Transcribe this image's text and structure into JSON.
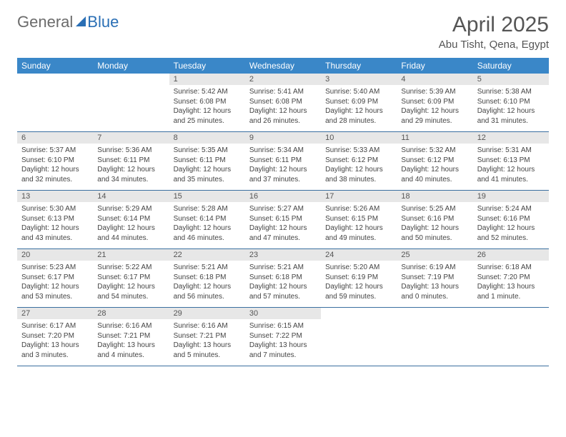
{
  "brand": {
    "part1": "General",
    "part2": "Blue"
  },
  "title": {
    "month": "April 2025",
    "location": "Abu Tisht, Qena, Egypt"
  },
  "colors": {
    "header_bg": "#3a87c8",
    "header_text": "#ffffff",
    "daynum_bg": "#e7e7e7",
    "row_border": "#3a6fa0",
    "brand_gray": "#6b6b6b",
    "brand_blue": "#2a6fb5",
    "title_color": "#555555",
    "body_text": "#444444",
    "background": "#ffffff"
  },
  "font": {
    "family": "Arial",
    "day_header_pt": 12,
    "daynum_pt": 11,
    "cell_pt": 10,
    "month_pt": 30,
    "location_pt": 15
  },
  "day_headers": [
    "Sunday",
    "Monday",
    "Tuesday",
    "Wednesday",
    "Thursday",
    "Friday",
    "Saturday"
  ],
  "weeks": [
    [
      {
        "num": "",
        "sunrise": "",
        "sunset": "",
        "daylight1": "",
        "daylight2": ""
      },
      {
        "num": "",
        "sunrise": "",
        "sunset": "",
        "daylight1": "",
        "daylight2": ""
      },
      {
        "num": "1",
        "sunrise": "Sunrise: 5:42 AM",
        "sunset": "Sunset: 6:08 PM",
        "daylight1": "Daylight: 12 hours",
        "daylight2": "and 25 minutes."
      },
      {
        "num": "2",
        "sunrise": "Sunrise: 5:41 AM",
        "sunset": "Sunset: 6:08 PM",
        "daylight1": "Daylight: 12 hours",
        "daylight2": "and 26 minutes."
      },
      {
        "num": "3",
        "sunrise": "Sunrise: 5:40 AM",
        "sunset": "Sunset: 6:09 PM",
        "daylight1": "Daylight: 12 hours",
        "daylight2": "and 28 minutes."
      },
      {
        "num": "4",
        "sunrise": "Sunrise: 5:39 AM",
        "sunset": "Sunset: 6:09 PM",
        "daylight1": "Daylight: 12 hours",
        "daylight2": "and 29 minutes."
      },
      {
        "num": "5",
        "sunrise": "Sunrise: 5:38 AM",
        "sunset": "Sunset: 6:10 PM",
        "daylight1": "Daylight: 12 hours",
        "daylight2": "and 31 minutes."
      }
    ],
    [
      {
        "num": "6",
        "sunrise": "Sunrise: 5:37 AM",
        "sunset": "Sunset: 6:10 PM",
        "daylight1": "Daylight: 12 hours",
        "daylight2": "and 32 minutes."
      },
      {
        "num": "7",
        "sunrise": "Sunrise: 5:36 AM",
        "sunset": "Sunset: 6:11 PM",
        "daylight1": "Daylight: 12 hours",
        "daylight2": "and 34 minutes."
      },
      {
        "num": "8",
        "sunrise": "Sunrise: 5:35 AM",
        "sunset": "Sunset: 6:11 PM",
        "daylight1": "Daylight: 12 hours",
        "daylight2": "and 35 minutes."
      },
      {
        "num": "9",
        "sunrise": "Sunrise: 5:34 AM",
        "sunset": "Sunset: 6:11 PM",
        "daylight1": "Daylight: 12 hours",
        "daylight2": "and 37 minutes."
      },
      {
        "num": "10",
        "sunrise": "Sunrise: 5:33 AM",
        "sunset": "Sunset: 6:12 PM",
        "daylight1": "Daylight: 12 hours",
        "daylight2": "and 38 minutes."
      },
      {
        "num": "11",
        "sunrise": "Sunrise: 5:32 AM",
        "sunset": "Sunset: 6:12 PM",
        "daylight1": "Daylight: 12 hours",
        "daylight2": "and 40 minutes."
      },
      {
        "num": "12",
        "sunrise": "Sunrise: 5:31 AM",
        "sunset": "Sunset: 6:13 PM",
        "daylight1": "Daylight: 12 hours",
        "daylight2": "and 41 minutes."
      }
    ],
    [
      {
        "num": "13",
        "sunrise": "Sunrise: 5:30 AM",
        "sunset": "Sunset: 6:13 PM",
        "daylight1": "Daylight: 12 hours",
        "daylight2": "and 43 minutes."
      },
      {
        "num": "14",
        "sunrise": "Sunrise: 5:29 AM",
        "sunset": "Sunset: 6:14 PM",
        "daylight1": "Daylight: 12 hours",
        "daylight2": "and 44 minutes."
      },
      {
        "num": "15",
        "sunrise": "Sunrise: 5:28 AM",
        "sunset": "Sunset: 6:14 PM",
        "daylight1": "Daylight: 12 hours",
        "daylight2": "and 46 minutes."
      },
      {
        "num": "16",
        "sunrise": "Sunrise: 5:27 AM",
        "sunset": "Sunset: 6:15 PM",
        "daylight1": "Daylight: 12 hours",
        "daylight2": "and 47 minutes."
      },
      {
        "num": "17",
        "sunrise": "Sunrise: 5:26 AM",
        "sunset": "Sunset: 6:15 PM",
        "daylight1": "Daylight: 12 hours",
        "daylight2": "and 49 minutes."
      },
      {
        "num": "18",
        "sunrise": "Sunrise: 5:25 AM",
        "sunset": "Sunset: 6:16 PM",
        "daylight1": "Daylight: 12 hours",
        "daylight2": "and 50 minutes."
      },
      {
        "num": "19",
        "sunrise": "Sunrise: 5:24 AM",
        "sunset": "Sunset: 6:16 PM",
        "daylight1": "Daylight: 12 hours",
        "daylight2": "and 52 minutes."
      }
    ],
    [
      {
        "num": "20",
        "sunrise": "Sunrise: 5:23 AM",
        "sunset": "Sunset: 6:17 PM",
        "daylight1": "Daylight: 12 hours",
        "daylight2": "and 53 minutes."
      },
      {
        "num": "21",
        "sunrise": "Sunrise: 5:22 AM",
        "sunset": "Sunset: 6:17 PM",
        "daylight1": "Daylight: 12 hours",
        "daylight2": "and 54 minutes."
      },
      {
        "num": "22",
        "sunrise": "Sunrise: 5:21 AM",
        "sunset": "Sunset: 6:18 PM",
        "daylight1": "Daylight: 12 hours",
        "daylight2": "and 56 minutes."
      },
      {
        "num": "23",
        "sunrise": "Sunrise: 5:21 AM",
        "sunset": "Sunset: 6:18 PM",
        "daylight1": "Daylight: 12 hours",
        "daylight2": "and 57 minutes."
      },
      {
        "num": "24",
        "sunrise": "Sunrise: 5:20 AM",
        "sunset": "Sunset: 6:19 PM",
        "daylight1": "Daylight: 12 hours",
        "daylight2": "and 59 minutes."
      },
      {
        "num": "25",
        "sunrise": "Sunrise: 6:19 AM",
        "sunset": "Sunset: 7:19 PM",
        "daylight1": "Daylight: 13 hours",
        "daylight2": "and 0 minutes."
      },
      {
        "num": "26",
        "sunrise": "Sunrise: 6:18 AM",
        "sunset": "Sunset: 7:20 PM",
        "daylight1": "Daylight: 13 hours",
        "daylight2": "and 1 minute."
      }
    ],
    [
      {
        "num": "27",
        "sunrise": "Sunrise: 6:17 AM",
        "sunset": "Sunset: 7:20 PM",
        "daylight1": "Daylight: 13 hours",
        "daylight2": "and 3 minutes."
      },
      {
        "num": "28",
        "sunrise": "Sunrise: 6:16 AM",
        "sunset": "Sunset: 7:21 PM",
        "daylight1": "Daylight: 13 hours",
        "daylight2": "and 4 minutes."
      },
      {
        "num": "29",
        "sunrise": "Sunrise: 6:16 AM",
        "sunset": "Sunset: 7:21 PM",
        "daylight1": "Daylight: 13 hours",
        "daylight2": "and 5 minutes."
      },
      {
        "num": "30",
        "sunrise": "Sunrise: 6:15 AM",
        "sunset": "Sunset: 7:22 PM",
        "daylight1": "Daylight: 13 hours",
        "daylight2": "and 7 minutes."
      },
      {
        "num": "",
        "sunrise": "",
        "sunset": "",
        "daylight1": "",
        "daylight2": ""
      },
      {
        "num": "",
        "sunrise": "",
        "sunset": "",
        "daylight1": "",
        "daylight2": ""
      },
      {
        "num": "",
        "sunrise": "",
        "sunset": "",
        "daylight1": "",
        "daylight2": ""
      }
    ]
  ]
}
